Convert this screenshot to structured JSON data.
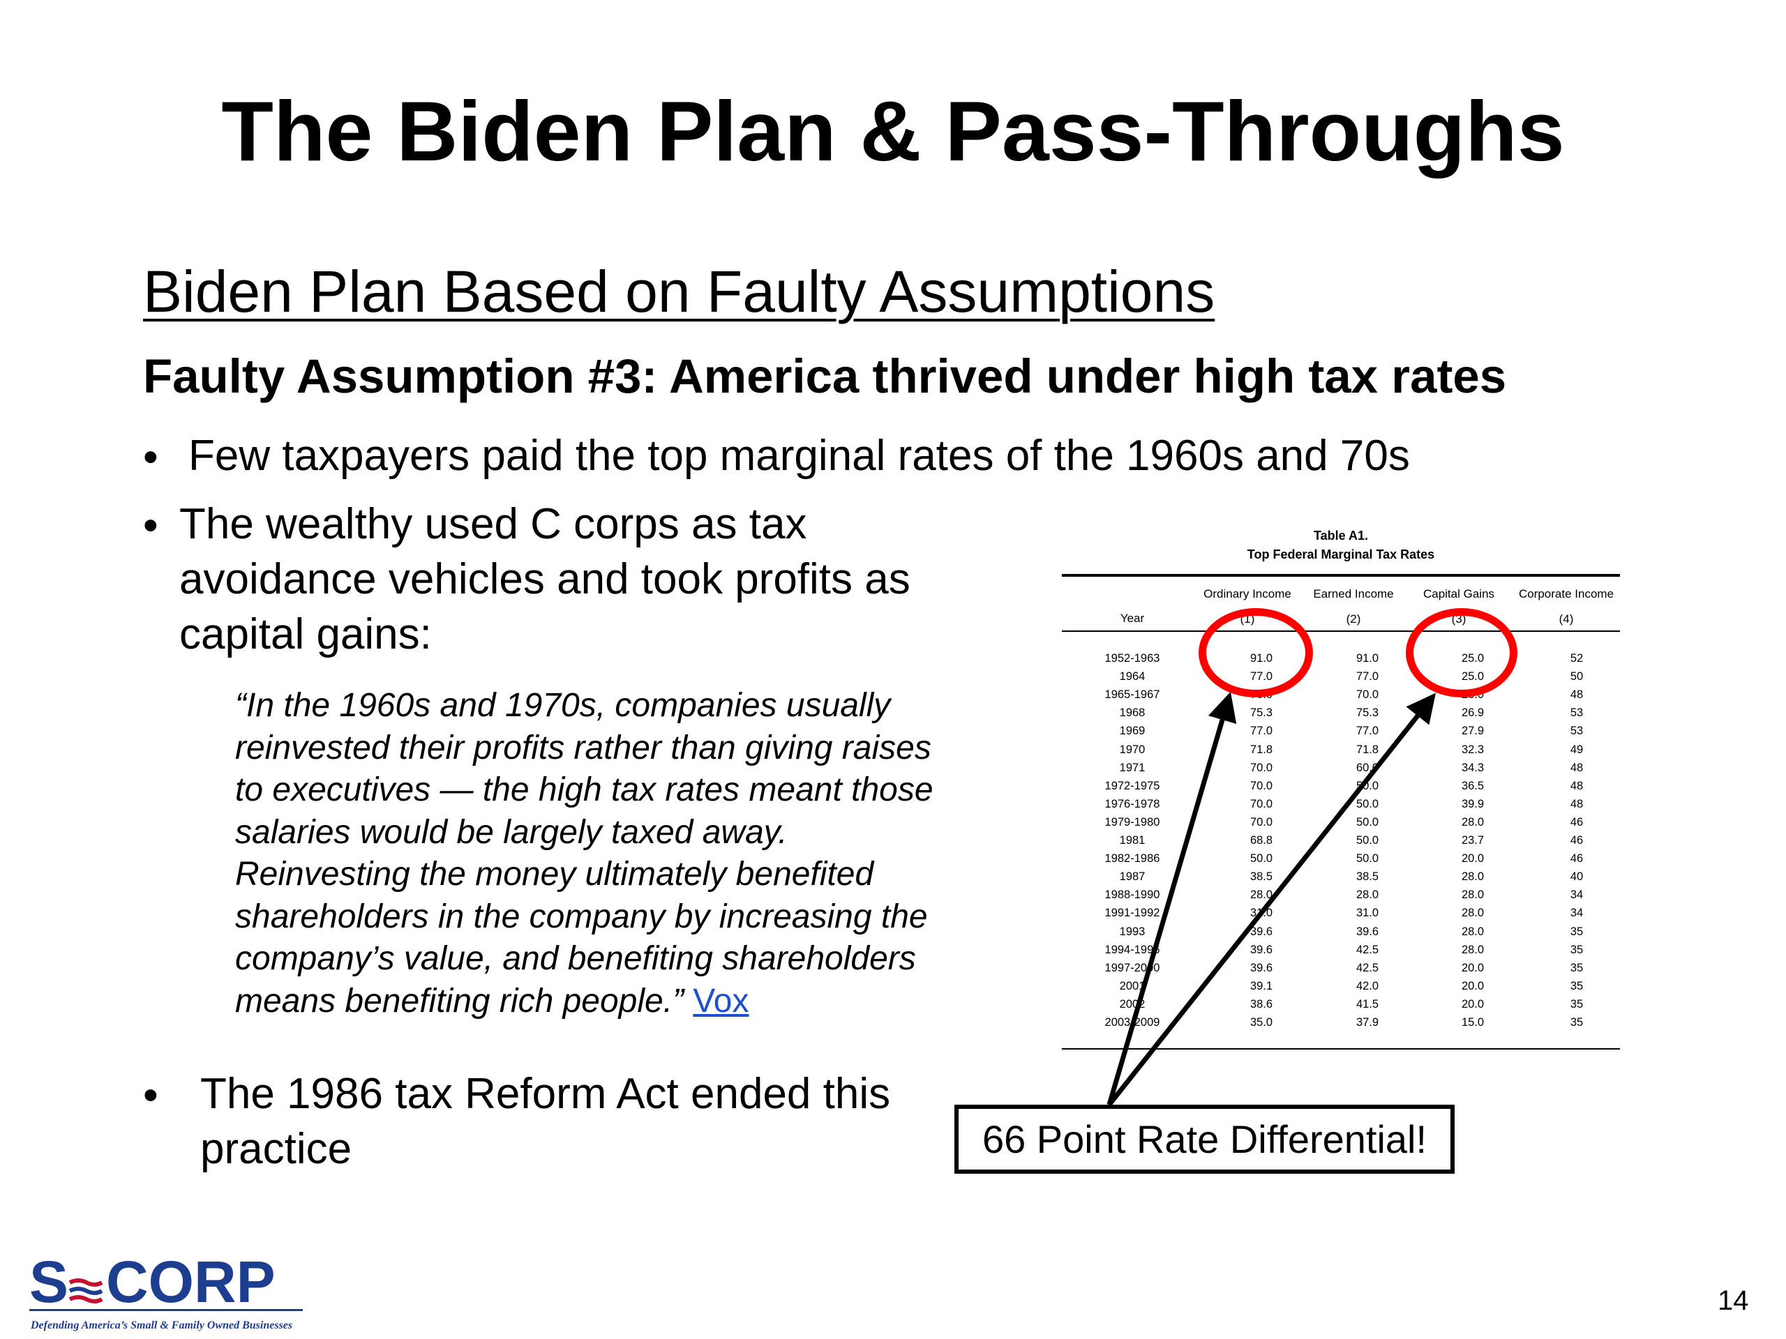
{
  "slide": {
    "title": "The Biden Plan & Pass-Throughs",
    "subtitle": "Biden Plan Based on Faulty Assumptions",
    "assumption": "Faulty Assumption #3: America thrived under high tax rates",
    "bullets": [
      "Few taxpayers paid the top marginal rates of the 1960s and 70s",
      "The wealthy used C corps as tax avoidance vehicles and took profits as capital gains:",
      "The 1986 tax Reform Act ended this practice"
    ],
    "bullet2_lines": [
      "The wealthy used C corps as tax",
      "avoidance vehicles and took profits as",
      "capital gains:"
    ],
    "bullet3_lines": [
      "The 1986 tax Reform Act ended this",
      "practice"
    ],
    "quote": {
      "text": "“In the 1960s and 1970s, companies usually reinvested their profits rather than giving raises to executives — the high tax rates meant those salaries would be largely taxed away. Reinvesting the money ultimately benefited shareholders in the company by increasing the company’s value, and benefiting shareholders means benefiting rich people.”",
      "lines": [
        "“In the 1960s and 1970s, companies usually",
        "reinvested their profits rather than giving raises",
        "to executives — the high tax rates meant those",
        "salaries would be largely taxed away.",
        "Reinvesting the money ultimately benefited",
        "shareholders in the company by increasing the",
        "company’s value, and benefiting shareholders",
        "means benefiting rich people.” "
      ],
      "source_link": "Vox"
    },
    "callout": "66 Point Rate Differential!",
    "page_number": "14",
    "logo": {
      "text_s": "S",
      "text_corp": "CORP",
      "tagline": "Defending America’s Small & Family Owned Businesses",
      "colors": {
        "blue": "#1d3d8f",
        "red": "#c8102e"
      }
    },
    "colors": {
      "circle": "#ff0000",
      "link": "#1f4fd0"
    }
  },
  "table": {
    "caption_line1": "Table A1.",
    "caption_line2": "Top Federal Marginal Tax Rates",
    "columns": [
      "Year",
      "Ordinary Income",
      "Earned Income",
      "Capital Gains",
      "Corporate Income"
    ],
    "column_numbers": [
      "",
      "(1)",
      "(2)",
      "(3)",
      "(4)"
    ],
    "rows": [
      [
        "1952-1963",
        "91.0",
        "91.0",
        "25.0",
        "52"
      ],
      [
        "1964",
        "77.0",
        "77.0",
        "25.0",
        "50"
      ],
      [
        "1965-1967",
        "70.0",
        "70.0",
        "25.0",
        "48"
      ],
      [
        "1968",
        "75.3",
        "75.3",
        "26.9",
        "53"
      ],
      [
        "1969",
        "77.0",
        "77.0",
        "27.9",
        "53"
      ],
      [
        "1970",
        "71.8",
        "71.8",
        "32.3",
        "49"
      ],
      [
        "1971",
        "70.0",
        "60.0",
        "34.3",
        "48"
      ],
      [
        "1972-1975",
        "70.0",
        "50.0",
        "36.5",
        "48"
      ],
      [
        "1976-1978",
        "70.0",
        "50.0",
        "39.9",
        "48"
      ],
      [
        "1979-1980",
        "70.0",
        "50.0",
        "28.0",
        "46"
      ],
      [
        "1981",
        "68.8",
        "50.0",
        "23.7",
        "46"
      ],
      [
        "1982-1986",
        "50.0",
        "50.0",
        "20.0",
        "46"
      ],
      [
        "1987",
        "38.5",
        "38.5",
        "28.0",
        "40"
      ],
      [
        "1988-1990",
        "28.0",
        "28.0",
        "28.0",
        "34"
      ],
      [
        "1991-1992",
        "31.0",
        "31.0",
        "28.0",
        "34"
      ],
      [
        "1993",
        "39.6",
        "39.6",
        "28.0",
        "35"
      ],
      [
        "1994-1996",
        "39.6",
        "42.5",
        "28.0",
        "35"
      ],
      [
        "1997-2000",
        "39.6",
        "42.5",
        "20.0",
        "35"
      ],
      [
        "2001",
        "39.1",
        "42.0",
        "20.0",
        "35"
      ],
      [
        "2002",
        "38.6",
        "41.5",
        "20.0",
        "35"
      ],
      [
        "2003-2009",
        "35.0",
        "37.9",
        "15.0",
        "35"
      ]
    ]
  }
}
